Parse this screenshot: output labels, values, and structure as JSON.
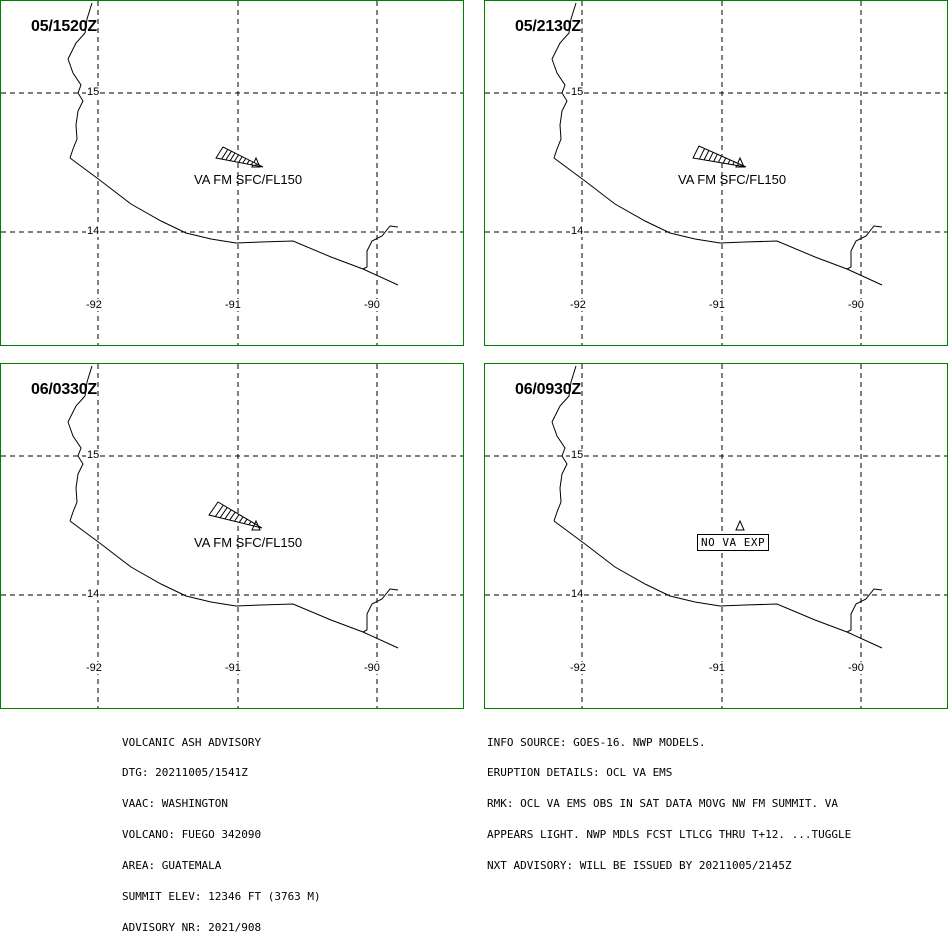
{
  "panels": [
    {
      "time": "05/1520Z",
      "label": "VA FM SFC/FL150",
      "kind": "plume"
    },
    {
      "time": "05/2130Z",
      "label": "VA FM SFC/FL150",
      "kind": "plume"
    },
    {
      "time": "06/0330Z",
      "label": "VA FM SFC/FL150",
      "kind": "plume"
    },
    {
      "time": "06/0930Z",
      "label": "NO VA EXP",
      "kind": "none"
    }
  ],
  "map": {
    "lat_ticks": [
      "15",
      "14"
    ],
    "lon_ticks": [
      "-92",
      "-91",
      "-90"
    ],
    "line_color": "#000000",
    "border_color": "#008000"
  },
  "advisory_left": [
    "VOLCANIC ASH ADVISORY",
    "DTG: 20211005/1541Z",
    "VAAC: WASHINGTON",
    "VOLCANO: FUEGO 342090",
    "AREA: GUATEMALA",
    "SUMMIT ELEV: 12346 FT (3763 M)",
    "ADVISORY NR: 2021/908"
  ],
  "advisory_right": [
    "INFO SOURCE: GOES-16. NWP MODELS.",
    "ERUPTION DETAILS: OCL VA EMS",
    "RMK: OCL VA EMS OBS IN SAT DATA MOVG NW FM SUMMIT. VA",
    "APPEARS LIGHT. NWP MDLS FCST LTLCG THRU T+12. ...TUGGLE",
    "NXT ADVISORY: WILL BE ISSUED BY 20211005/2145Z"
  ]
}
